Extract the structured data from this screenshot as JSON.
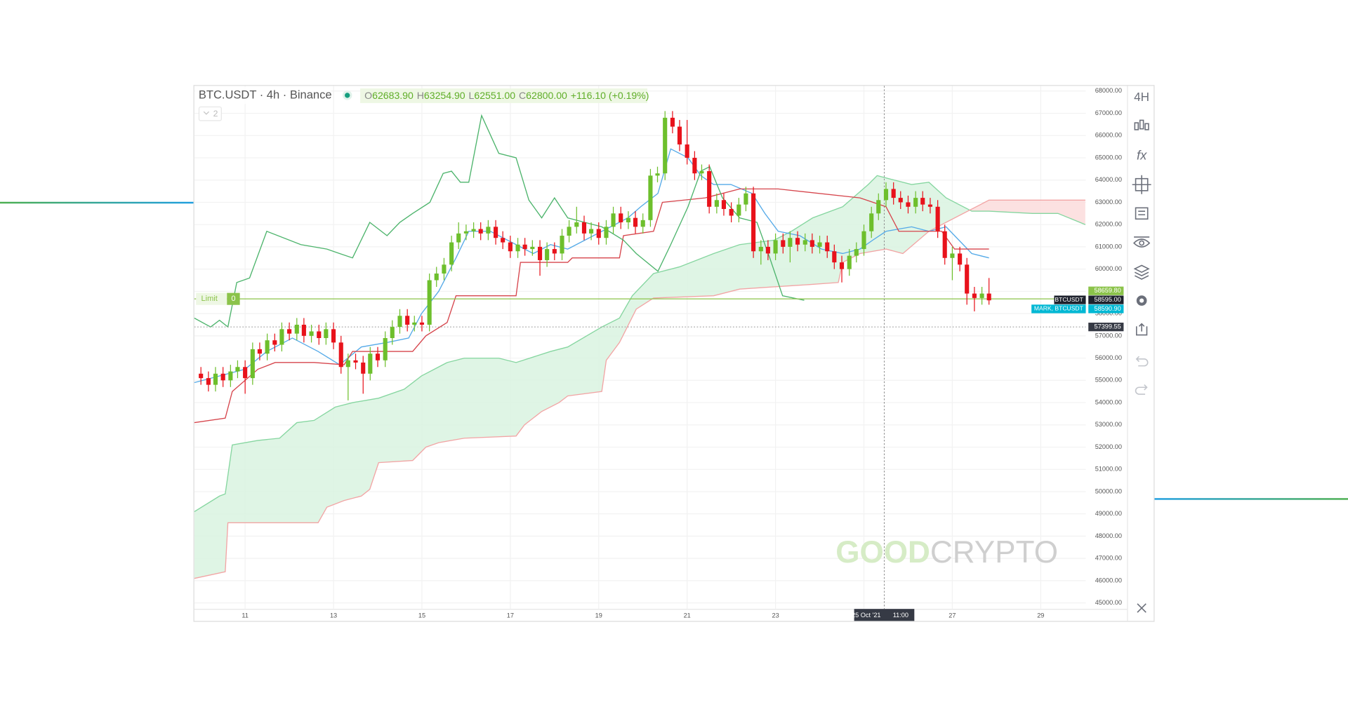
{
  "chart_data": {
    "type": "candlestick",
    "title": "BTC.USDT · 4h · Binance",
    "header": {
      "ohlc": [
        {
          "label": "O",
          "value": "62683.90"
        },
        {
          "label": "H",
          "value": "63254.90"
        },
        {
          "label": "L",
          "value": "62551.00"
        },
        {
          "label": "C",
          "value": "62800.00"
        }
      ],
      "change": "+116.10 (+0.19%)",
      "indicator_count": 2
    },
    "toolbar": {
      "interval": "4H",
      "indicators": "fx"
    },
    "watermark": [
      "GOOD",
      "CRYPTO"
    ],
    "up_color": "#6dbf2c",
    "down_color": "#e8121b",
    "x": [
      10,
      10.17,
      10.33,
      10.5,
      10.67,
      10.83,
      11,
      11.17,
      11.33,
      11.5,
      11.67,
      11.83,
      12,
      12.17,
      12.33,
      12.5,
      12.67,
      12.83,
      13,
      13.17,
      13.33,
      13.5,
      13.67,
      13.83,
      14,
      14.17,
      14.33,
      14.5,
      14.67,
      14.83,
      15,
      15.17,
      15.33,
      15.5,
      15.67,
      15.83,
      16,
      16.17,
      16.33,
      16.5,
      16.67,
      16.83,
      17,
      17.17,
      17.33,
      17.5,
      17.67,
      17.83,
      18,
      18.17,
      18.33,
      18.5,
      18.67,
      18.83,
      19,
      19.17,
      19.33,
      19.5,
      19.67,
      19.83,
      20,
      20.17,
      20.33,
      20.5,
      20.67,
      20.83,
      21,
      21.17,
      21.33,
      21.5,
      21.67,
      21.83,
      22,
      22.17,
      22.33,
      22.5,
      22.67,
      22.83,
      23,
      23.17,
      23.33,
      23.5,
      23.67,
      23.83,
      24,
      24.17,
      24.33,
      24.5,
      24.67,
      24.83,
      25,
      25.17,
      25.33,
      25.5,
      25.67,
      25.83,
      26,
      26.17,
      26.33,
      26.5,
      26.67,
      26.83,
      27,
      27.17,
      27.33,
      27.5,
      27.67,
      27.83
    ],
    "open": [
      55300,
      55100,
      54800,
      55300,
      55000,
      55400,
      55600,
      55100,
      56400,
      56200,
      56800,
      56600,
      57300,
      57100,
      57500,
      57000,
      57200,
      56900,
      57300,
      56700,
      55600,
      55900,
      55800,
      55300,
      56200,
      55900,
      56900,
      57400,
      57900,
      57500,
      57600,
      57500,
      59500,
      59800,
      60200,
      61200,
      61600,
      61700,
      61800,
      61600,
      61900,
      61400,
      61200,
      60800,
      61100,
      60900,
      61000,
      60400,
      60900,
      60700,
      61500,
      61900,
      62100,
      61600,
      61800,
      61400,
      61900,
      62500,
      62100,
      62300,
      61900,
      62200,
      64200,
      64300,
      66800,
      66400,
      65600,
      65000,
      64300,
      64400,
      62800,
      63100,
      62700,
      62400,
      62900,
      63400,
      60800,
      61000,
      60700,
      61300,
      61000,
      61400,
      61100,
      61300,
      61000,
      61200,
      60800,
      60300,
      60000,
      60600,
      60900,
      61700,
      62500,
      63100,
      63600,
      63200,
      63000,
      62800,
      63200,
      62900,
      62800,
      61700,
      60500,
      60700,
      60200,
      58900,
      58700,
      58900
    ],
    "high": [
      55600,
      55400,
      55600,
      55600,
      55700,
      55900,
      55900,
      56700,
      56700,
      57100,
      57100,
      57600,
      57600,
      57800,
      57800,
      57500,
      57500,
      57600,
      57600,
      57000,
      56200,
      56200,
      56100,
      56500,
      56500,
      57200,
      57700,
      58200,
      58200,
      57900,
      57900,
      59800,
      60100,
      60500,
      61500,
      62100,
      62000,
      62100,
      62100,
      62200,
      62200,
      61700,
      61500,
      61400,
      61400,
      61300,
      61300,
      61200,
      61200,
      61800,
      62200,
      62800,
      62400,
      62100,
      62100,
      62200,
      62800,
      62800,
      62600,
      62600,
      62500,
      64500,
      64600,
      67100,
      67100,
      66700,
      66700,
      65300,
      64700,
      64700,
      63400,
      63400,
      63000,
      63200,
      63700,
      63700,
      61300,
      61300,
      61600,
      61600,
      61700,
      61700,
      61600,
      61600,
      61500,
      61500,
      61100,
      60600,
      60900,
      61200,
      62000,
      62800,
      63400,
      63900,
      63900,
      63500,
      63300,
      63500,
      63500,
      63200,
      63100,
      62000,
      61000,
      61000,
      60500,
      59200,
      59200,
      59600
    ],
    "low": [
      54800,
      54500,
      54500,
      54700,
      54700,
      55100,
      54400,
      54800,
      55900,
      55900,
      56300,
      56300,
      56800,
      56800,
      56700,
      56700,
      56600,
      56600,
      56400,
      55300,
      54100,
      55500,
      54400,
      55000,
      55600,
      55600,
      56600,
      57100,
      57200,
      57200,
      57200,
      57200,
      59200,
      59500,
      59900,
      60900,
      61300,
      61400,
      61300,
      61300,
      61100,
      60900,
      60500,
      60500,
      60600,
      60600,
      59700,
      60100,
      60400,
      60400,
      61200,
      61600,
      61300,
      61300,
      61100,
      61100,
      61600,
      61800,
      61800,
      61600,
      61600,
      61900,
      63900,
      64000,
      66100,
      65300,
      64700,
      64000,
      64000,
      62500,
      62500,
      62400,
      62100,
      62100,
      62600,
      60500,
      60200,
      60400,
      60400,
      60700,
      60300,
      60800,
      60800,
      60700,
      60700,
      60500,
      60000,
      59400,
      59700,
      60300,
      60600,
      61400,
      62200,
      62800,
      62900,
      62700,
      62500,
      62500,
      62600,
      62500,
      61400,
      60200,
      59500,
      59900,
      58400,
      58100,
      58400,
      58400
    ],
    "close": [
      55100,
      54800,
      55300,
      55000,
      55400,
      55600,
      55100,
      56400,
      56200,
      56800,
      56600,
      57300,
      57100,
      57500,
      57000,
      57200,
      56900,
      57300,
      56700,
      55600,
      55900,
      55800,
      55300,
      56200,
      55900,
      56900,
      57400,
      57900,
      57500,
      57600,
      57500,
      59500,
      59800,
      60200,
      61200,
      61600,
      61700,
      61800,
      61600,
      61900,
      61400,
      61200,
      60800,
      61100,
      60900,
      61000,
      60400,
      60900,
      60700,
      61500,
      61900,
      62100,
      61600,
      61800,
      61400,
      61900,
      62500,
      62100,
      62300,
      61900,
      62200,
      64200,
      64300,
      66800,
      66400,
      65600,
      65000,
      64300,
      64400,
      62800,
      63100,
      62700,
      62400,
      62900,
      63400,
      60800,
      61000,
      60700,
      61300,
      61000,
      61400,
      61100,
      61300,
      61000,
      61200,
      60800,
      60300,
      60000,
      60600,
      60900,
      61700,
      62500,
      63100,
      63600,
      63200,
      63000,
      62800,
      63200,
      62900,
      62800,
      61700,
      60500,
      60700,
      60200,
      58900,
      58700,
      58900,
      58595
    ],
    "cloud": {
      "span_a": {
        "color": "#86d6a0",
        "x": [
          9.85,
          10.42,
          10.55,
          10.71,
          11.29,
          11.78,
          12.17,
          12.56,
          13.04,
          13.43,
          14.02,
          14.6,
          14.99,
          15.57,
          15.96,
          16.74,
          17.13,
          17.91,
          18.3,
          19.07,
          19.47,
          19.76,
          20.24,
          20.83,
          21.6,
          22.19,
          22.97,
          23.36,
          23.84,
          24.52,
          25.1,
          25.3,
          25.69,
          26.08,
          26.47,
          26.86,
          27.44,
          27.83,
          28.81,
          29.39,
          30.01
        ],
        "values": [
          49100,
          49800,
          49900,
          52100,
          52300,
          52400,
          53100,
          53200,
          53800,
          54000,
          54200,
          54600,
          55200,
          55800,
          56000,
          56000,
          55800,
          56300,
          56500,
          57400,
          57800,
          58800,
          59800,
          60100,
          60700,
          61100,
          61300,
          61700,
          62300,
          62800,
          63800,
          64200,
          64000,
          63800,
          63900,
          63200,
          62600,
          62600,
          62500,
          62500,
          62000
        ]
      },
      "span_b": {
        "color": "#f2a5a5",
        "x": [
          9.85,
          10.55,
          10.61,
          12.65,
          12.85,
          13.24,
          13.63,
          13.82,
          14.02,
          14.79,
          15.09,
          15.38,
          15.96,
          17.13,
          17.32,
          17.71,
          18.1,
          18.3,
          19.07,
          19.17,
          19.47,
          19.85,
          20.24,
          21.6,
          22.19,
          22.97,
          23.75,
          24.42,
          24.52,
          24.91,
          25.5,
          25.88,
          26.47,
          26.86,
          27.83,
          30.01
        ],
        "values": [
          46100,
          46400,
          48600,
          48600,
          49300,
          49600,
          49800,
          50100,
          51300,
          51400,
          52000,
          52200,
          52400,
          52500,
          53000,
          53600,
          54000,
          54300,
          54500,
          55900,
          56700,
          58200,
          58700,
          58800,
          59100,
          59200,
          59300,
          59400,
          60300,
          60700,
          60900,
          60700,
          61700,
          62100,
          63100,
          63100
        ]
      },
      "up_fill": "#d9f3e1",
      "down_fill": "#fbdcdc"
    },
    "lines": [
      {
        "color": "#55aae8",
        "x": [
          9.85,
          11,
          11.49,
          12.07,
          12.65,
          13.14,
          13.63,
          14.21,
          14.7,
          14.99,
          15.38,
          15.77,
          16.06,
          16.55,
          17.13,
          17.52,
          17.91,
          18.3,
          18.88,
          19.27,
          19.66,
          19.95,
          20.34,
          20.63,
          21.02,
          21.31,
          21.6,
          21.99,
          22.47,
          22.76,
          23.06,
          23.55,
          24.04,
          24.52,
          24.91,
          25.2,
          25.5,
          26.08,
          26.47,
          26.86,
          27.15,
          27.44,
          27.83
        ],
        "values": [
          54900,
          55500,
          56300,
          56900,
          56300,
          55700,
          56500,
          56700,
          56900,
          58000,
          59000,
          60500,
          61700,
          61700,
          61100,
          60700,
          61100,
          60900,
          61500,
          61900,
          62300,
          62800,
          63400,
          65400,
          65000,
          64200,
          63800,
          63800,
          63400,
          62500,
          61700,
          61500,
          60900,
          60700,
          60900,
          61300,
          61700,
          61900,
          61700,
          61900,
          61300,
          60700,
          60500
        ]
      },
      {
        "color": "#d6454c",
        "x": [
          9.85,
          10.55,
          10.71,
          11.29,
          11.68,
          12.56,
          13.24,
          13.43,
          14.79,
          15.09,
          15.57,
          15.77,
          17.13,
          17.23,
          18.3,
          18.4,
          19.47,
          19.56,
          20.24,
          20.44,
          21.41,
          22.19,
          23.06,
          24.91,
          25.5,
          25.79,
          26.76,
          27.05,
          27.83
        ],
        "values": [
          53100,
          53300,
          54500,
          55500,
          55800,
          55800,
          55700,
          56300,
          56300,
          57000,
          57600,
          58800,
          58800,
          60300,
          60300,
          60500,
          60500,
          61500,
          61700,
          63000,
          63200,
          63600,
          63600,
          63200,
          62800,
          61700,
          61700,
          60900,
          60900
        ]
      },
      {
        "color": "#4db46c",
        "x": [
          9.85,
          10.22,
          10.42,
          10.61,
          10.81,
          11.1,
          11.49,
          12.26,
          12.85,
          13.14,
          13.43,
          13.82,
          14.21,
          14.5,
          14.79,
          15.18,
          15.48,
          15.67,
          15.87,
          16.06,
          16.35,
          16.74,
          17.13,
          17.42,
          17.71,
          18,
          18.3,
          18.68,
          19.07,
          19.56,
          19.85,
          20.34,
          20.63,
          21.02,
          21.31,
          21.51,
          21.8,
          22.19,
          22.58,
          22.87,
          23.16,
          23.65
        ],
        "values": [
          57800,
          57400,
          57700,
          57400,
          59400,
          59600,
          61700,
          61100,
          60900,
          60700,
          60500,
          62100,
          61500,
          62100,
          62500,
          63000,
          64300,
          64400,
          63900,
          63900,
          66900,
          65200,
          65000,
          63100,
          62300,
          63200,
          62300,
          62100,
          61900,
          61300,
          60700,
          59900,
          61100,
          62800,
          64400,
          64600,
          63200,
          62300,
          62100,
          60500,
          58800,
          58600
        ]
      }
    ],
    "limit": {
      "label": "Limit",
      "quantity": 0
    },
    "price_labels": [
      {
        "value": 58659.8,
        "label": "58659.80",
        "color": "#8bc34a"
      },
      {
        "value": 58595,
        "label": "58595.00",
        "color": "#1e222d",
        "tag": "BTCUSDT"
      },
      {
        "value": 58590.9,
        "label": "58590.90",
        "color": "#00b8d4",
        "tag": "MARK, BTCUSDT"
      },
      {
        "value": 57399.55,
        "label": "57399.55",
        "color": "#363a45"
      }
    ],
    "crosshair": {
      "x": 25.46,
      "date_label": "25 Oct '21",
      "time_label": "11:00"
    },
    "xlim": [
      9.85,
      30.02
    ],
    "xticks": [
      11,
      13,
      15,
      17,
      19,
      21,
      23,
      25,
      27,
      29
    ],
    "ylim": [
      45000,
      68000
    ],
    "yticks": [
      {
        "value": 45000,
        "label": "45000.00"
      },
      {
        "value": 46000,
        "label": "46000.00"
      },
      {
        "value": 47000,
        "label": "47000.00"
      },
      {
        "value": 48000,
        "label": "48000.00"
      },
      {
        "value": 49000,
        "label": "49000.00"
      },
      {
        "value": 50000,
        "label": "50000.00"
      },
      {
        "value": 51000,
        "label": "51000.00"
      },
      {
        "value": 52000,
        "label": "52000.00"
      },
      {
        "value": 53000,
        "label": "53000.00"
      },
      {
        "value": 54000,
        "label": "54000.00"
      },
      {
        "value": 55000,
        "label": "55000.00"
      },
      {
        "value": 56000,
        "label": "56000.00"
      },
      {
        "value": 57000,
        "label": "57000.00"
      },
      {
        "value": 58000,
        "label": "58000.00"
      },
      {
        "value": 59000,
        "label": "59000.00"
      },
      {
        "value": 60000,
        "label": "60000.00"
      },
      {
        "value": 61000,
        "label": "61000.00"
      },
      {
        "value": 62000,
        "label": "62000.00"
      },
      {
        "value": 63000,
        "label": "63000.00"
      },
      {
        "value": 64000,
        "label": "64000.00"
      },
      {
        "value": 65000,
        "label": "65000.00"
      },
      {
        "value": 66000,
        "label": "66000.00"
      },
      {
        "value": 67000,
        "label": "67000.00"
      },
      {
        "value": 68000,
        "label": "68000.00"
      }
    ],
    "grid": true
  }
}
